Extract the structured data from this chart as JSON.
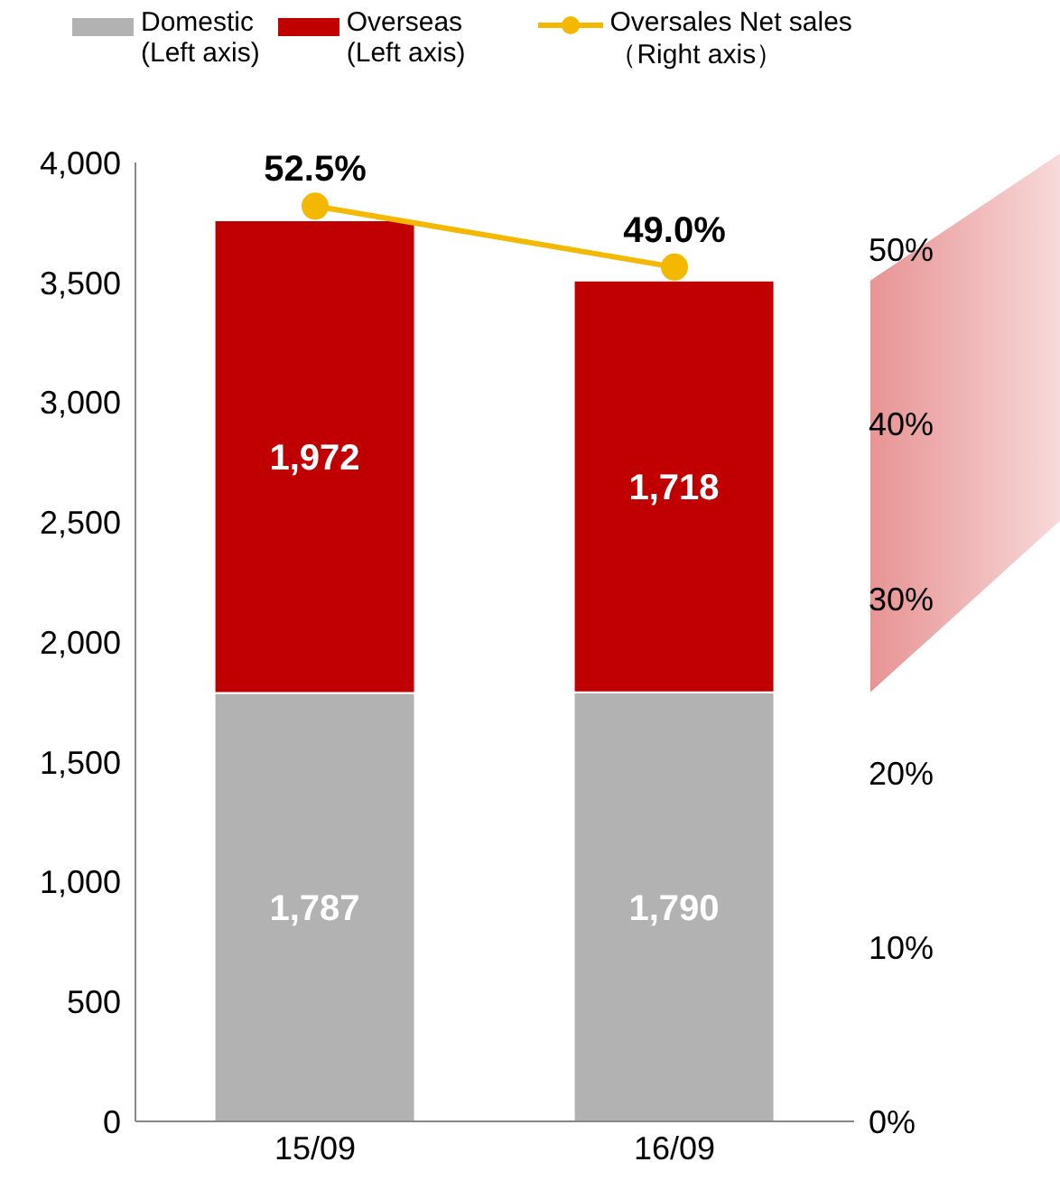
{
  "chart_data": {
    "type": "bar",
    "stacked": true,
    "categories": [
      "15/09",
      "16/09"
    ],
    "series": [
      {
        "name": "Domestic\n(Left axis)",
        "color": "#b2b2b2",
        "values": [
          1787,
          1790
        ],
        "value_labels": [
          "1,787",
          "1,790"
        ]
      },
      {
        "name": "Overseas\n(Left axis)",
        "color": "#c00000",
        "values": [
          1972,
          1718
        ],
        "value_labels": [
          "1,972",
          "1,718"
        ]
      },
      {
        "name": "Oversales Net sales\n（Right axis）",
        "type": "line",
        "axis": "y2",
        "color": "#f5b800",
        "values": [
          52.5,
          49.0
        ],
        "value_labels": [
          "52.5%",
          "49.0%"
        ]
      }
    ],
    "ylim": [
      0,
      4000
    ],
    "yticks": [
      0,
      500,
      {
        "value": 1000,
        "label": "1,000"
      },
      {
        "value": 1500,
        "label": "1,500"
      },
      {
        "value": 2000,
        "label": "2,000"
      },
      {
        "value": 2500,
        "label": "2,500"
      },
      {
        "value": 3000,
        "label": "3,000"
      },
      {
        "value": 3500,
        "label": "3,500"
      },
      {
        "value": 4000,
        "label": "4,000"
      }
    ],
    "y2lim": [
      0,
      55
    ],
    "y2ticks": [
      {
        "value": 0,
        "label": "0%"
      },
      {
        "value": 10,
        "label": "10%"
      },
      {
        "value": 20,
        "label": "20%"
      },
      {
        "value": 30,
        "label": "30%"
      },
      {
        "value": 40,
        "label": "40%"
      },
      {
        "value": 50,
        "label": "50%"
      }
    ],
    "legend": "top left",
    "marker": "circle"
  }
}
